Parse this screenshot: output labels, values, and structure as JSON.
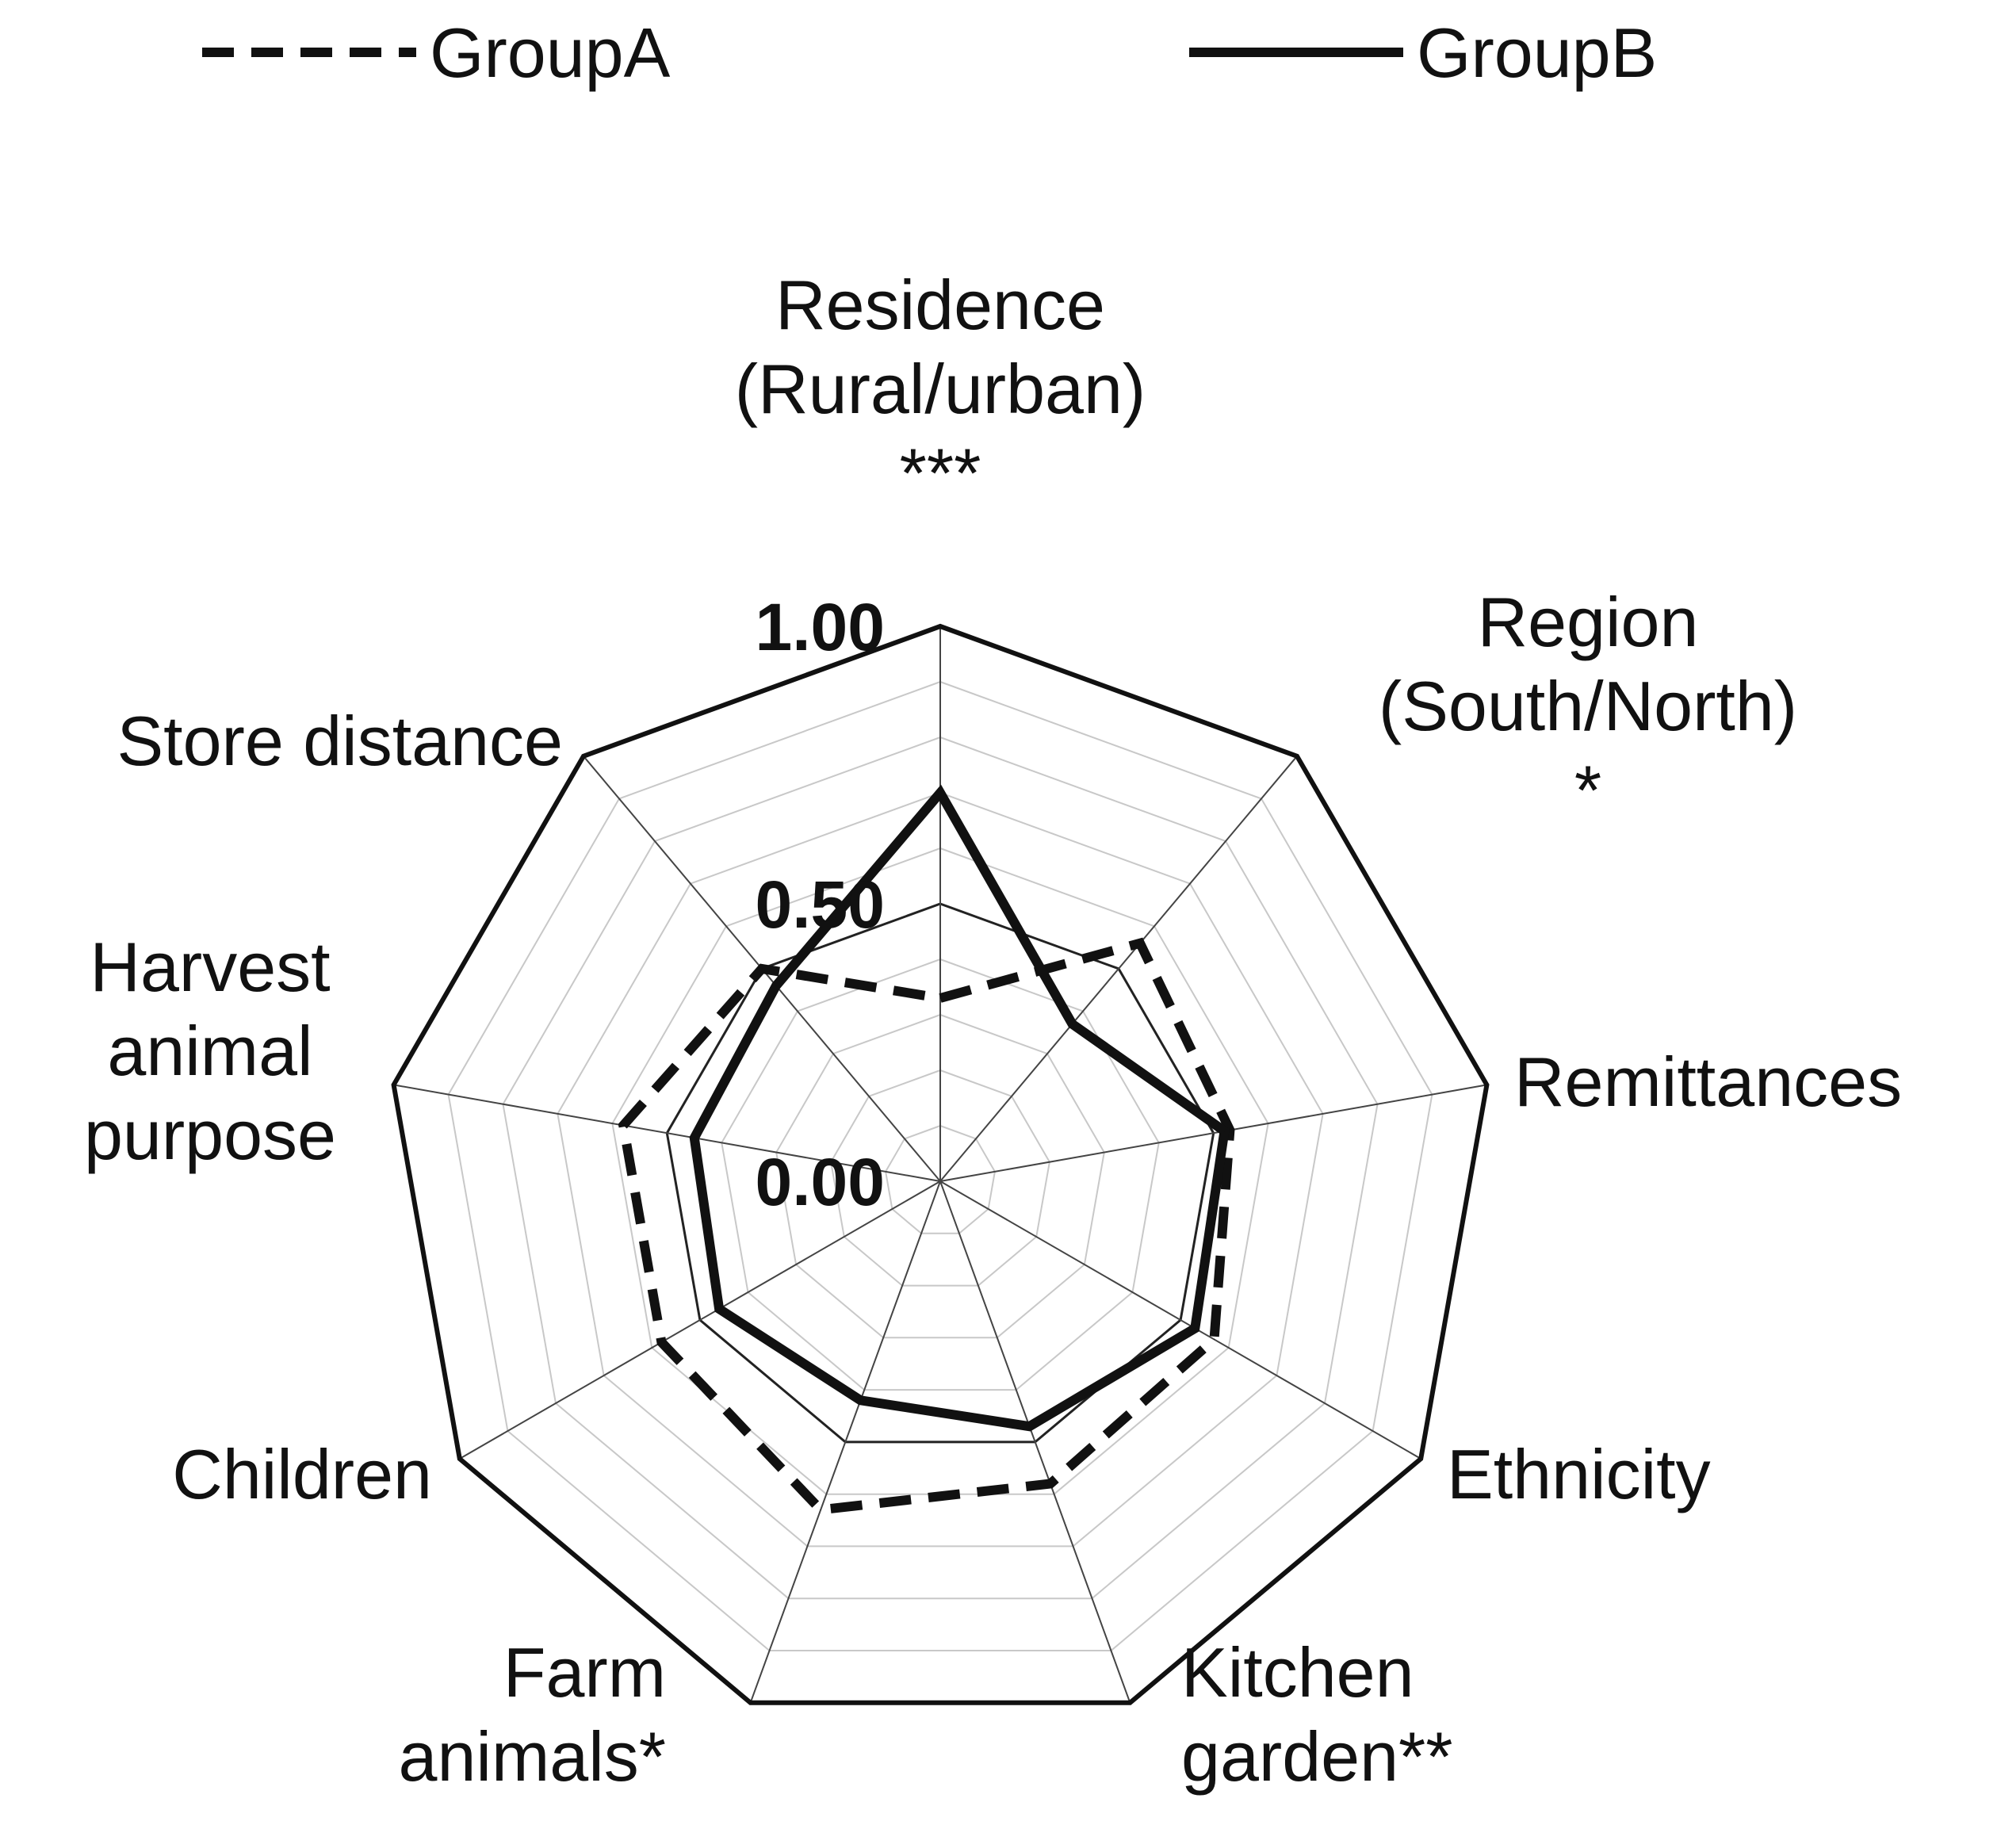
{
  "chart_data": {
    "type": "radar",
    "title": "",
    "rlim": [
      0,
      1
    ],
    "ticks": [
      {
        "value": 0.0,
        "label": "0.00"
      },
      {
        "value": 0.5,
        "label": "0.50"
      },
      {
        "value": 1.0,
        "label": "1.00"
      }
    ],
    "gridlines_step": 0.1,
    "axes": [
      {
        "name": "residence",
        "lines": [
          "Residence",
          "(Rural/urban)",
          "***"
        ]
      },
      {
        "name": "region",
        "lines": [
          "Region",
          "(South/North)",
          "*"
        ]
      },
      {
        "name": "remittances",
        "lines": [
          "Remittances"
        ]
      },
      {
        "name": "ethnicity",
        "lines": [
          "Ethnicity"
        ]
      },
      {
        "name": "kitchen-garden",
        "lines": [
          "Kitchen",
          "garden**"
        ]
      },
      {
        "name": "farm-animals",
        "lines": [
          "Farm",
          "animals*"
        ]
      },
      {
        "name": "children",
        "lines": [
          "Children"
        ]
      },
      {
        "name": "harvest-animal-purpose",
        "lines": [
          "Harvest",
          "animal",
          "purpose"
        ]
      },
      {
        "name": "store-distance",
        "lines": [
          "Store distance"
        ]
      }
    ],
    "series": [
      {
        "name": "GroupA",
        "style": "dashed",
        "color": "#111111",
        "values": [
          0.33,
          0.56,
          0.53,
          0.57,
          0.58,
          0.63,
          0.58,
          0.58,
          0.5
        ]
      },
      {
        "name": "GroupB",
        "style": "solid",
        "color": "#111111",
        "values": [
          0.7,
          0.37,
          0.52,
          0.53,
          0.47,
          0.42,
          0.46,
          0.45,
          0.46
        ]
      }
    ],
    "legend_position": "top"
  }
}
